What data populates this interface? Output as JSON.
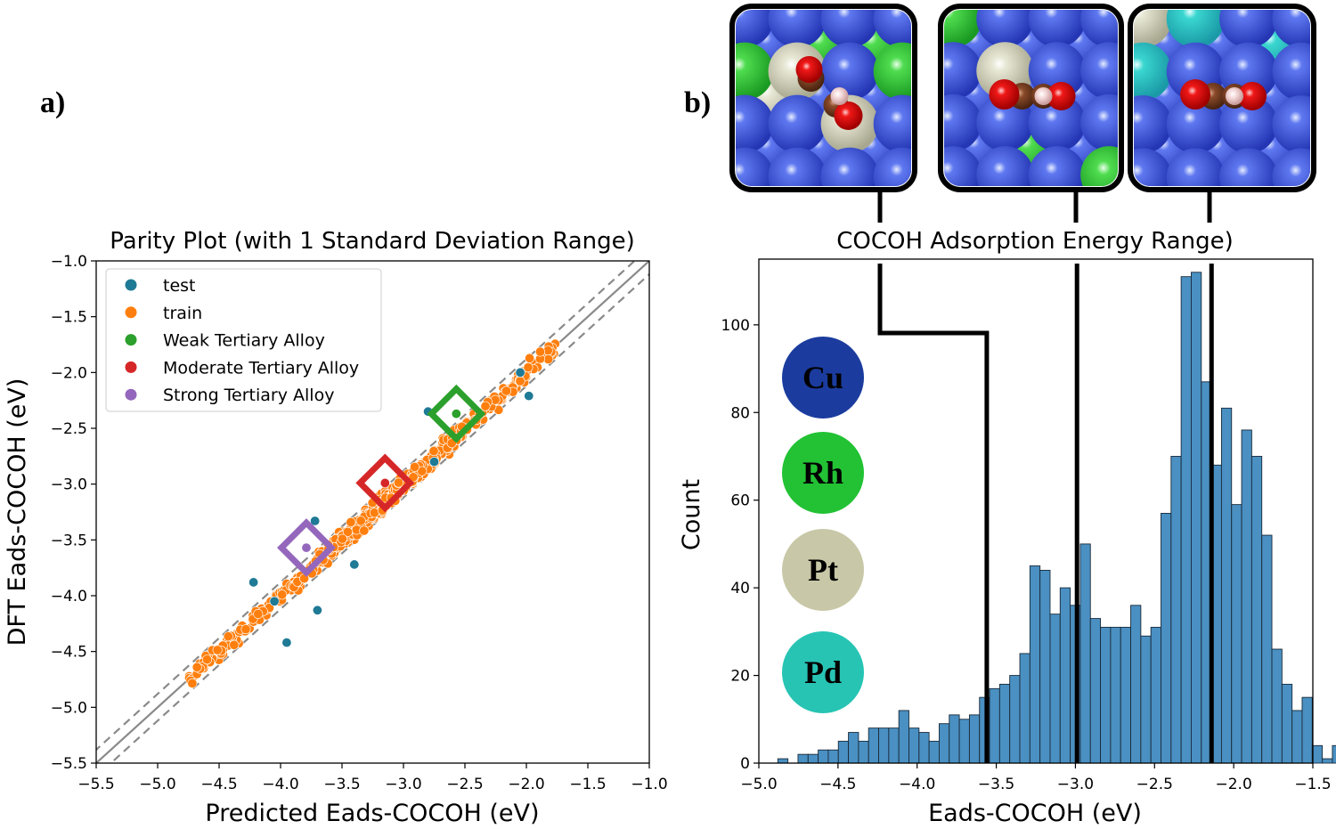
{
  "panel_a_label": "a)",
  "panel_b_label": "b)",
  "colors": {
    "test": "#1f7a96",
    "train": "#ff7f0e",
    "weak": "#2ca02c",
    "moderate": "#d62728",
    "strong": "#9467bd",
    "hist": "#4a90c2",
    "cu": "#1b3c9e",
    "rh": "#22c234",
    "pt": "#c8c8a8",
    "pd": "#27c4b4"
  },
  "elements": [
    {
      "symbol": "Cu",
      "color": "#1b3c9e"
    },
    {
      "symbol": "Rh",
      "color": "#22c234"
    },
    {
      "symbol": "Pt",
      "color": "#c8c8a8"
    },
    {
      "symbol": "Pd",
      "color": "#27c4b4"
    }
  ],
  "chart_data": [
    {
      "type": "scatter",
      "title": "Parity Plot (with 1 Standard Deviation Range)",
      "xlabel": "Predicted Eads-COCOH (eV)",
      "ylabel": "DFT Eads-COCOH (eV)",
      "xlim": [
        -5.5,
        -1.0
      ],
      "ylim": [
        -5.5,
        -1.0
      ],
      "xticks": [
        -5.5,
        -5.0,
        -4.5,
        -4.0,
        -3.5,
        -3.0,
        -2.5,
        -2.0,
        -1.5,
        -1.0
      ],
      "yticks": [
        -5.5,
        -5.0,
        -4.5,
        -4.0,
        -3.5,
        -3.0,
        -2.5,
        -2.0,
        -1.5,
        -1.0
      ],
      "xtick_labels": [
        "−5.5",
        "−5.0",
        "−4.5",
        "−4.0",
        "−3.5",
        "−3.0",
        "−2.5",
        "−2.0",
        "−1.5",
        "−1.0"
      ],
      "ytick_labels": [
        "−5.5",
        "−5.0",
        "−4.5",
        "−4.0",
        "−3.5",
        "−3.0",
        "−2.5",
        "−2.0",
        "−1.5",
        "−1.0"
      ],
      "grid": false,
      "legend_position": "top-left",
      "std_band": 0.12,
      "legend": [
        {
          "label": "test",
          "color": "#1f7a96"
        },
        {
          "label": "train",
          "color": "#ff7f0e"
        },
        {
          "label": "Weak Tertiary Alloy",
          "color": "#2ca02c"
        },
        {
          "label": "Moderate Tertiary Alloy",
          "color": "#d62728"
        },
        {
          "label": "Strong Tertiary Alloy",
          "color": "#9467bd"
        }
      ],
      "train_x_range": [
        -4.75,
        -1.75
      ],
      "test_points": [
        {
          "x": -4.22,
          "y": -3.88
        },
        {
          "x": -3.95,
          "y": -4.42
        },
        {
          "x": -3.7,
          "y": -4.13
        },
        {
          "x": -3.72,
          "y": -3.33
        },
        {
          "x": -1.98,
          "y": -2.21
        },
        {
          "x": -2.8,
          "y": -2.35
        },
        {
          "x": -2.75,
          "y": -2.8
        },
        {
          "x": -3.4,
          "y": -3.72
        },
        {
          "x": -4.05,
          "y": -4.05
        },
        {
          "x": -2.05,
          "y": -2.0
        }
      ],
      "alloys": [
        {
          "name": "Weak Tertiary Alloy",
          "x": -2.57,
          "y": -2.37,
          "color": "#2ca02c"
        },
        {
          "name": "Moderate Tertiary Alloy",
          "x": -3.15,
          "y": -2.99,
          "color": "#d62728"
        },
        {
          "name": "Strong Tertiary Alloy",
          "x": -3.79,
          "y": -3.57,
          "color": "#9467bd"
        }
      ]
    },
    {
      "type": "bar",
      "title": "COCOH Adsorption Energy Range)",
      "xlabel": "Eads-COCOH (eV)",
      "ylabel": "Count",
      "xlim": [
        -5.0,
        -1.5
      ],
      "ylim": [
        0,
        115
      ],
      "xticks": [
        -5.0,
        -4.5,
        -4.0,
        -3.5,
        -3.0,
        -2.5,
        -2.0,
        -1.5
      ],
      "xtick_labels": [
        "−5.0",
        "−4.5",
        "−4.0",
        "−3.5",
        "−3.0",
        "−2.5",
        "−2.0",
        "−1.5"
      ],
      "yticks": [
        0,
        20,
        40,
        60,
        80,
        100
      ],
      "ytick_labels": [
        "0",
        "20",
        "40",
        "60",
        "80",
        "100"
      ],
      "grid": false,
      "bin_start": -4.88,
      "bin_width": 0.0637,
      "counts": [
        1,
        0,
        2,
        2,
        3,
        3,
        5,
        7,
        5,
        8,
        8,
        8,
        12,
        8,
        7,
        5,
        9,
        11,
        10,
        11,
        15,
        17,
        18,
        20,
        25,
        45,
        44,
        34,
        40,
        36,
        50,
        33,
        31,
        31,
        31,
        36,
        29,
        31,
        57,
        70,
        111,
        112,
        87,
        68,
        81,
        59,
        76,
        70,
        52,
        26,
        18,
        12,
        15,
        4,
        1,
        4,
        2,
        0,
        1
      ],
      "alloy_markers": [
        -3.56,
        -2.99,
        -2.14
      ],
      "bracket_top_count": 100
    }
  ]
}
